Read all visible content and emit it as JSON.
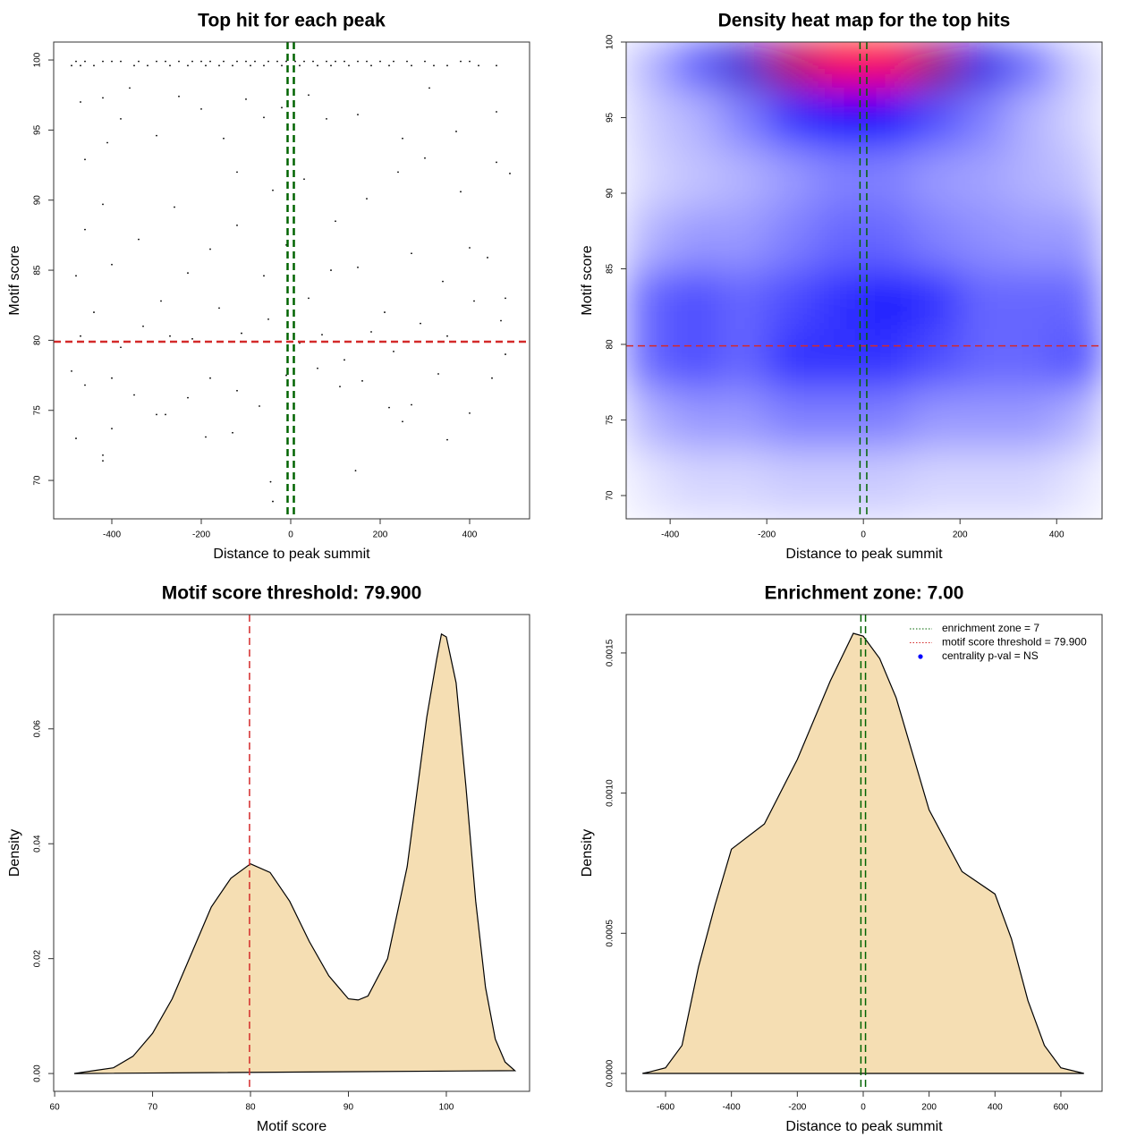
{
  "chart_data": [
    {
      "type": "scatter",
      "title": "Top hit for each peak",
      "x_label": "Distance to peak summit",
      "y_label": "Motif score",
      "xlim": [
        -530,
        534
      ],
      "ylim": [
        67.26,
        101.28
      ],
      "xticks": [
        -400,
        -200,
        0,
        200,
        400
      ],
      "yticks": [
        70,
        75,
        80,
        85,
        90,
        95,
        100
      ],
      "color": "#000000",
      "x": [
        -480,
        -460,
        -420,
        -400,
        -380,
        -340,
        -300,
        -280,
        -250,
        -220,
        -200,
        -180,
        -150,
        -120,
        -100,
        -80,
        -50,
        -30,
        -10,
        10,
        30,
        50,
        80,
        100,
        120,
        150,
        170,
        200,
        230,
        260,
        300,
        380,
        400,
        -490,
        -470,
        -440,
        -350,
        -320,
        -270,
        -230,
        -190,
        -160,
        -130,
        -90,
        -60,
        -20,
        20,
        60,
        90,
        130,
        180,
        220,
        270,
        320,
        350,
        420,
        460,
        -470,
        -420,
        -380,
        -410,
        -360,
        -300,
        -250,
        -200,
        -150,
        -100,
        -60,
        -20,
        40,
        80,
        150,
        250,
        310,
        370,
        460,
        -460,
        -420,
        -260,
        -120,
        -40,
        30,
        100,
        170,
        240,
        300,
        380,
        460,
        490,
        -480,
        -460,
        -400,
        -340,
        -290,
        -230,
        -180,
        -120,
        -60,
        -10,
        40,
        90,
        150,
        210,
        270,
        340,
        400,
        440,
        480,
        -470,
        -440,
        -380,
        -330,
        -270,
        -220,
        -160,
        -110,
        -50,
        20,
        70,
        120,
        180,
        230,
        290,
        350,
        410,
        470,
        -490,
        -460,
        -400,
        -350,
        -300,
        -230,
        -180,
        -120,
        -70,
        -10,
        60,
        110,
        160,
        220,
        270,
        330,
        400,
        450,
        480,
        -480,
        -420,
        -420,
        -400,
        -280,
        -130,
        -45,
        -40,
        145,
        250,
        350,
        -190
      ],
      "values": [
        99.9,
        99.9,
        99.9,
        99.9,
        99.9,
        99.9,
        99.9,
        99.9,
        99.9,
        99.9,
        99.9,
        99.9,
        99.9,
        99.9,
        99.9,
        99.9,
        99.9,
        99.9,
        99.9,
        99.9,
        99.9,
        99.9,
        99.9,
        99.9,
        99.9,
        99.9,
        99.9,
        99.9,
        99.9,
        99.9,
        99.9,
        99.9,
        99.9,
        99.6,
        99.6,
        99.6,
        99.6,
        99.6,
        99.6,
        99.6,
        99.6,
        99.6,
        99.6,
        99.6,
        99.6,
        99.6,
        99.6,
        99.6,
        99.6,
        99.6,
        99.6,
        99.6,
        99.6,
        99.6,
        99.6,
        99.6,
        99.6,
        97,
        97.3,
        95.8,
        94.1,
        98,
        94.6,
        97.4,
        96.5,
        94.4,
        97.2,
        95.9,
        96.6,
        97.5,
        95.8,
        96.1,
        94.4,
        98,
        94.9,
        96.3,
        92.9,
        89.7,
        89.5,
        92,
        90.7,
        91.5,
        88.5,
        90.1,
        92,
        93,
        90.6,
        92.7,
        91.9,
        84.6,
        87.9,
        85.4,
        87.2,
        82.8,
        84.8,
        86.5,
        88.2,
        84.6,
        86.8,
        83,
        85,
        85.2,
        82,
        86.2,
        84.2,
        86.6,
        85.9,
        83,
        80.3,
        82,
        79.5,
        81,
        80.3,
        80.1,
        82.3,
        80.5,
        81.5,
        79.8,
        80.4,
        78.6,
        80.6,
        79.2,
        81.2,
        80.3,
        82.8,
        81.4,
        77.8,
        76.8,
        77.3,
        76.1,
        74.7,
        75.9,
        77.3,
        76.4,
        75.3,
        77.5,
        78,
        76.7,
        77.1,
        75.2,
        75.4,
        77.6,
        74.8,
        77.3,
        79,
        73,
        71.8,
        71.4,
        73.7,
        74.7,
        73.4,
        69.9,
        68.5,
        70.7,
        74.2,
        72.9,
        73.1
      ],
      "hlines": [
        {
          "value": 79.9,
          "color": "#d42a2a"
        }
      ],
      "vlines": [
        {
          "value": -7,
          "color": "#006400"
        },
        {
          "value": 7,
          "color": "#006400"
        }
      ]
    },
    {
      "type": "heatmap",
      "title": "Density heat map for the top hits",
      "x_label": "Distance to peak summit",
      "y_label": "Motif score",
      "xlim": [
        -491,
        494
      ],
      "ylim": [
        68.46,
        100
      ],
      "xticks": [
        -400,
        -200,
        0,
        200,
        400
      ],
      "yticks": [
        70,
        75,
        80,
        85,
        90,
        95,
        100
      ],
      "colormap": [
        "#ffffff",
        "#0000ff",
        "#ff0000"
      ],
      "x": [
        -450,
        -350,
        -250,
        -150,
        -50,
        50,
        150,
        250,
        350,
        450
      ],
      "y": [
        99,
        95,
        91,
        87,
        83,
        79,
        75,
        71
      ],
      "z": [
        [
          0.15,
          0.35,
          0.6,
          0.85,
          1.0,
          1.0,
          0.8,
          0.55,
          0.3,
          0.1
        ],
        [
          0.1,
          0.15,
          0.25,
          0.4,
          0.5,
          0.5,
          0.35,
          0.25,
          0.15,
          0.08
        ],
        [
          0.08,
          0.12,
          0.15,
          0.2,
          0.25,
          0.25,
          0.2,
          0.18,
          0.15,
          0.12
        ],
        [
          0.15,
          0.2,
          0.2,
          0.25,
          0.3,
          0.3,
          0.25,
          0.22,
          0.2,
          0.2
        ],
        [
          0.3,
          0.35,
          0.3,
          0.35,
          0.4,
          0.45,
          0.4,
          0.3,
          0.3,
          0.3
        ],
        [
          0.3,
          0.35,
          0.3,
          0.4,
          0.4,
          0.4,
          0.35,
          0.3,
          0.3,
          0.35
        ],
        [
          0.15,
          0.2,
          0.2,
          0.25,
          0.25,
          0.25,
          0.2,
          0.2,
          0.2,
          0.15
        ],
        [
          0.05,
          0.08,
          0.08,
          0.1,
          0.1,
          0.1,
          0.08,
          0.08,
          0.08,
          0.05
        ]
      ],
      "hlines": [
        {
          "value": 79.9,
          "color": "#d42a2a"
        }
      ],
      "vlines": [
        {
          "value": -7,
          "color": "#006400"
        },
        {
          "value": 7,
          "color": "#006400"
        }
      ]
    },
    {
      "type": "area",
      "title": "Motif score threshold: 79.900",
      "x_label": "Motif score",
      "y_label": "Density",
      "xlim": [
        59.9,
        108.5
      ],
      "ylim": [
        -0.0031,
        0.0799
      ],
      "xticks": [
        60,
        70,
        80,
        90,
        100
      ],
      "yticks": [
        {
          "value": 0,
          "label": "0.00"
        },
        0.02,
        0.04,
        0.06
      ],
      "color": "#f5deb3",
      "x": [
        62,
        64,
        66,
        68,
        70,
        72,
        74,
        76,
        78,
        80,
        82,
        84,
        86,
        88,
        90,
        91,
        92,
        94,
        96,
        98,
        99,
        99.5,
        100,
        101,
        102,
        103,
        104,
        105,
        106,
        107
      ],
      "values": [
        0,
        0.0005,
        0.001,
        0.003,
        0.007,
        0.013,
        0.021,
        0.029,
        0.034,
        0.0365,
        0.035,
        0.03,
        0.023,
        0.017,
        0.013,
        0.0128,
        0.0135,
        0.02,
        0.036,
        0.062,
        0.072,
        0.0765,
        0.076,
        0.068,
        0.05,
        0.03,
        0.015,
        0.006,
        0.002,
        0.0005
      ],
      "vlines": [
        {
          "value": 79.9,
          "color": "#d42a2a"
        }
      ]
    },
    {
      "type": "area",
      "title": "Enrichment zone: 7.00",
      "x_label": "Distance to peak summit",
      "y_label": "Density",
      "xlim": [
        -719.5,
        725
      ],
      "ylim": [
        -6.38e-05,
        0.001637
      ],
      "xticks": [
        -600,
        -400,
        -200,
        0,
        200,
        400,
        600
      ],
      "yticks": [
        {
          "value": 0,
          "label": "0.0000"
        },
        {
          "value": 0.0005,
          "label": "0.0005"
        },
        {
          "value": 0.001,
          "label": "0.0010"
        },
        {
          "value": 0.0015,
          "label": "0.0015"
        }
      ],
      "color": "#f5deb3",
      "x": [
        -670,
        -650,
        -600,
        -550,
        -500,
        -450,
        -400,
        -300,
        -200,
        -100,
        -30,
        0,
        50,
        100,
        200,
        300,
        400,
        450,
        500,
        550,
        600,
        670
      ],
      "values": [
        0,
        5e-06,
        2e-05,
        0.0001,
        0.00038,
        0.0006,
        0.0008,
        0.00089,
        0.00112,
        0.0014,
        0.00157,
        0.00156,
        0.00148,
        0.00134,
        0.00094,
        0.00072,
        0.00064,
        0.00048,
        0.00026,
        0.0001,
        2e-05,
        0
      ],
      "vlines": [
        {
          "value": -7,
          "color": "#006400"
        },
        {
          "value": 7,
          "color": "#006400"
        }
      ],
      "legend": {
        "position": "topright",
        "items": [
          {
            "label": "enrichment zone = 7",
            "color": "#006400",
            "symbol": "dotted"
          },
          {
            "label": "motif score threshold = 79.900",
            "color": "#d42a2a",
            "symbol": "dotted"
          },
          {
            "label": "centrality p-val = NS",
            "color": "#0000ff",
            "symbol": "point"
          }
        ]
      }
    }
  ]
}
